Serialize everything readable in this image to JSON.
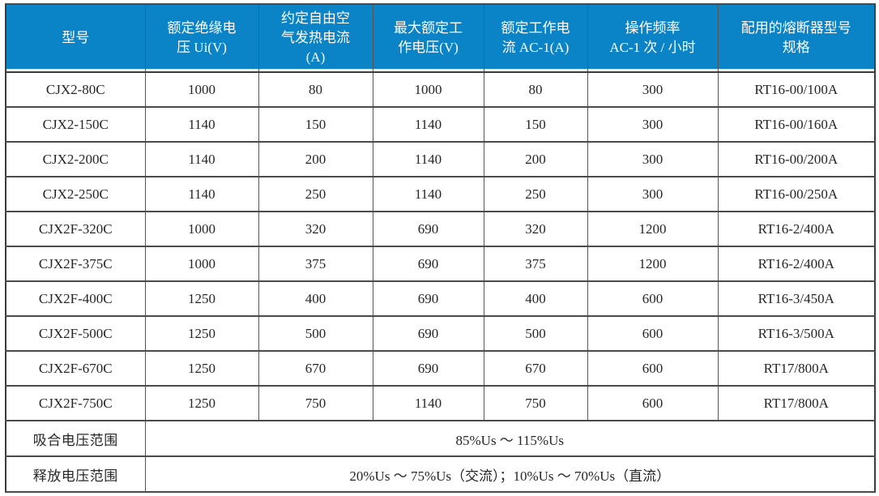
{
  "table": {
    "header_bg": "#0A84C6",
    "header_text_color": "#FFFFFF",
    "border_color": "#4A4A4A",
    "body_text_color": "#262626",
    "columns": [
      "型号",
      "额定绝缘电\n压 Ui(V)",
      "约定自由空\n气发热电流\n(A)",
      "最大额定工\n作电压(V)",
      "额定工作电\n流 AC-1(A)",
      "操作频率\nAC-1 次 / 小时",
      "配用的熔断器型号\n规格"
    ],
    "rows": [
      [
        "CJX2-80C",
        "1000",
        "80",
        "1000",
        "80",
        "300",
        "RT16-00/100A"
      ],
      [
        "CJX2-150C",
        "1140",
        "150",
        "1140",
        "150",
        "300",
        "RT16-00/160A"
      ],
      [
        "CJX2-200C",
        "1140",
        "200",
        "1140",
        "200",
        "300",
        "RT16-00/200A"
      ],
      [
        "CJX2-250C",
        "1140",
        "250",
        "1140",
        "250",
        "300",
        "RT16-00/250A"
      ],
      [
        "CJX2F-320C",
        "1000",
        "320",
        "690",
        "320",
        "1200",
        "RT16-2/400A"
      ],
      [
        "CJX2F-375C",
        "1000",
        "375",
        "690",
        "375",
        "1200",
        "RT16-2/400A"
      ],
      [
        "CJX2F-400C",
        "1250",
        "400",
        "690",
        "400",
        "600",
        "RT16-3/450A"
      ],
      [
        "CJX2F-500C",
        "1250",
        "500",
        "690",
        "500",
        "600",
        "RT16-3/500A"
      ],
      [
        "CJX2F-670C",
        "1250",
        "670",
        "690",
        "670",
        "600",
        "RT17/800A"
      ],
      [
        "CJX2F-750C",
        "1250",
        "750",
        "1140",
        "750",
        "600",
        "RT17/800A"
      ]
    ],
    "footer_rows": [
      {
        "label": "吸合电压范围",
        "value": "85%Us ～ 115%Us"
      },
      {
        "label": "释放电压范围",
        "value": "20%Us ～ 75%Us（交流）；10%Us ～ 70%Us（直流）"
      }
    ]
  }
}
